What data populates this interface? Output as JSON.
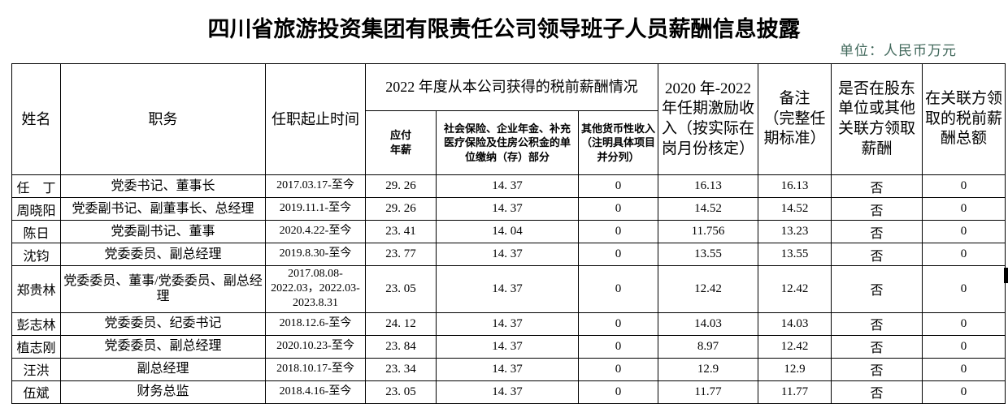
{
  "page": {
    "title": "四川省旅游投资集团有限责任公司领导班子人员薪酬信息披露",
    "unit_note": "单位：人民币万元",
    "unit_note_color": "#41685b"
  },
  "table": {
    "headers": {
      "name": "姓名",
      "position": "职务",
      "tenure": "任职起止时间",
      "salary_2022_group": "2022 年度从本公司获得的税前薪酬情况",
      "payable_salary": "应付\n年薪",
      "social_insurance": "社会保险、企业年金、补充医疗保险及住房公积金的单位缴纳（存）部分",
      "other_income": "其他货币性收入（注明具体项目并分列）",
      "incentive": "2020 年-2022 年任期激励收入（按实际在岗月份核定）",
      "remark": "备注\n（完整任期标准）",
      "related_party_salary": "是否在股东单位或其他关联方领取薪酬",
      "related_party_total": "在关联方领取的税前薪酬总额"
    },
    "rows": [
      {
        "name": "任　丁",
        "position": "党委书记、董事长",
        "tenure": "2017.03.17-至今",
        "payable": "29. 26",
        "social": "14. 37",
        "other": "0",
        "incentive": "16.13",
        "remark": "16.13",
        "related": "否",
        "related_total": "0"
      },
      {
        "name": "周晓阳",
        "position": "党委副书记、副董事长、总经理",
        "tenure": "2019.11.1-至今",
        "payable": "29. 26",
        "social": "14. 37",
        "other": "0",
        "incentive": "14.52",
        "remark": "14.52",
        "related": "否",
        "related_total": "0"
      },
      {
        "name": "陈日",
        "position": "党委副书记、董事",
        "tenure": "2020.4.22-至今",
        "payable": "23. 41",
        "social": "14. 04",
        "other": "0",
        "incentive": "11.756",
        "remark": "13.23",
        "related": "否",
        "related_total": "0"
      },
      {
        "name": "沈钧",
        "position": "党委委员、副总经理",
        "tenure": "2019.8.30-至今",
        "payable": "23. 77",
        "social": "14. 37",
        "other": "0",
        "incentive": "13.55",
        "remark": "13.55",
        "related": "否",
        "related_total": "0"
      },
      {
        "name": "郑贵林",
        "position": "党委委员、董事/党委委员、副总经理",
        "tenure": "2017.08.08-2022.03，2022.03-2023.8.31",
        "payable": "23. 05",
        "social": "14. 37",
        "other": "0",
        "incentive": "12.42",
        "remark": "12.42",
        "related": "否",
        "related_total": "0",
        "tall": true
      },
      {
        "name": "彭志林",
        "position": "党委委员、纪委书记",
        "tenure": "2018.12.6-至今",
        "payable": "24. 12",
        "social": "14. 37",
        "other": "0",
        "incentive": "14.03",
        "remark": "14.03",
        "related": "否",
        "related_total": "0"
      },
      {
        "name": "植志刚",
        "position": "党委委员、副总经理",
        "tenure": "2020.10.23-至今",
        "payable": "23. 84",
        "social": "14. 37",
        "other": "0",
        "incentive": "8.97",
        "remark": "12.42",
        "related": "否",
        "related_total": "0"
      },
      {
        "name": "汪洪",
        "position": "副总经理",
        "tenure": "2018.10.17-至今",
        "payable": "23. 34",
        "social": "14. 37",
        "other": "0",
        "incentive": "12.9",
        "remark": "12.9",
        "related": "否",
        "related_total": "0"
      },
      {
        "name": "伍斌",
        "position": "财务总监",
        "tenure": "2018.4.16-至今",
        "payable": "23. 05",
        "social": "14. 37",
        "other": "0",
        "incentive": "11.77",
        "remark": "11.77",
        "related": "否",
        "related_total": "0"
      }
    ]
  }
}
